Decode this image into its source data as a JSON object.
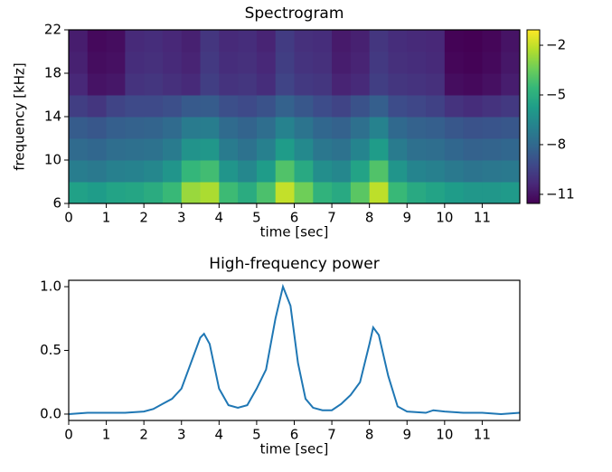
{
  "chart_data": [
    {
      "type": "heatmap",
      "title": "Spectrogram",
      "xlabel": "time [sec]",
      "ylabel": "frequency [kHz]",
      "colormap": "viridis",
      "x_bins": [
        0,
        0.5,
        1,
        1.5,
        2,
        2.5,
        3,
        3.5,
        4,
        4.5,
        5,
        5.5,
        6,
        6.5,
        7,
        7.5,
        8,
        8.5,
        9,
        9.5,
        10,
        10.5,
        11,
        11.5,
        12
      ],
      "y_bins": [
        6,
        8,
        10,
        12,
        14,
        16,
        18,
        20,
        22
      ],
      "z": [
        [
          -5.6,
          -5.8,
          -5.5,
          -5.4,
          -5.1,
          -4.5,
          -2.7,
          -2.4,
          -4.4,
          -5.1,
          -4.1,
          -2.0,
          -3.4,
          -4.8,
          -5.2,
          -3.8,
          -2.1,
          -4.5,
          -5.2,
          -5.5,
          -5.8,
          -6.0,
          -6.0,
          -5.9
        ],
        [
          -7.1,
          -7.3,
          -7.0,
          -6.9,
          -6.7,
          -6.1,
          -4.6,
          -4.3,
          -6.1,
          -6.7,
          -5.8,
          -4.0,
          -5.2,
          -6.4,
          -6.7,
          -5.5,
          -4.0,
          -6.1,
          -6.8,
          -7.0,
          -7.3,
          -7.5,
          -7.4,
          -7.3
        ],
        [
          -7.9,
          -8.1,
          -7.8,
          -7.7,
          -7.6,
          -7.2,
          -6.2,
          -6.0,
          -7.2,
          -7.6,
          -7.0,
          -5.8,
          -6.6,
          -7.4,
          -7.6,
          -6.8,
          -5.8,
          -7.2,
          -7.7,
          -7.8,
          -8.1,
          -8.3,
          -8.2,
          -8.1
        ],
        [
          -8.5,
          -8.7,
          -8.4,
          -8.3,
          -8.2,
          -7.9,
          -7.2,
          -7.1,
          -7.9,
          -8.2,
          -7.8,
          -6.9,
          -7.5,
          -8.1,
          -8.3,
          -7.7,
          -6.9,
          -8.0,
          -8.3,
          -8.4,
          -8.7,
          -8.9,
          -8.8,
          -8.7
        ],
        [
          -9.6,
          -9.9,
          -9.4,
          -9.2,
          -9.2,
          -9.0,
          -8.6,
          -8.5,
          -9.0,
          -9.2,
          -8.9,
          -8.3,
          -8.7,
          -9.1,
          -9.4,
          -8.9,
          -8.4,
          -9.1,
          -9.3,
          -9.5,
          -10.0,
          -10.2,
          -10.0,
          -9.8
        ],
        [
          -10.4,
          -11.0,
          -10.9,
          -10.0,
          -9.9,
          -10.1,
          -10.3,
          -9.6,
          -10.0,
          -9.9,
          -10.2,
          -9.4,
          -9.8,
          -9.9,
          -10.5,
          -10.3,
          -9.6,
          -9.9,
          -10.0,
          -10.1,
          -11.2,
          -11.3,
          -11.1,
          -10.7
        ],
        [
          -10.6,
          -11.2,
          -11.1,
          -10.2,
          -10.1,
          -10.3,
          -10.5,
          -9.8,
          -10.2,
          -10.1,
          -10.4,
          -9.6,
          -10.0,
          -10.1,
          -10.7,
          -10.5,
          -9.8,
          -10.1,
          -10.2,
          -10.3,
          -11.4,
          -11.5,
          -11.3,
          -10.9
        ],
        [
          -10.7,
          -11.3,
          -11.2,
          -10.3,
          -10.2,
          -10.4,
          -10.6,
          -9.9,
          -10.3,
          -10.2,
          -10.5,
          -9.7,
          -10.1,
          -10.2,
          -10.8,
          -10.6,
          -9.9,
          -10.2,
          -10.3,
          -10.4,
          -11.5,
          -11.6,
          -11.4,
          -11.0
        ]
      ],
      "xlim": [
        0,
        12
      ],
      "ylim": [
        6,
        22
      ],
      "xticks": [
        0,
        1,
        2,
        3,
        4,
        5,
        6,
        7,
        8,
        9,
        10,
        11
      ],
      "yticks": [
        6,
        10,
        14,
        18,
        22
      ],
      "clim": [
        -11.55,
        -1.07
      ],
      "cticks": [
        {
          "value": -2,
          "label": "−2"
        },
        {
          "value": -5,
          "label": "−5"
        },
        {
          "value": -8,
          "label": "−8"
        },
        {
          "value": -11,
          "label": "−11"
        }
      ]
    },
    {
      "type": "line",
      "title": "High-frequency power",
      "xlabel": "time [sec]",
      "color": "#1f77b4",
      "x": [
        0,
        0.5,
        1,
        1.5,
        2,
        2.25,
        2.5,
        2.75,
        3,
        3.25,
        3.5,
        3.6,
        3.75,
        4,
        4.25,
        4.5,
        4.75,
        5,
        5.25,
        5.5,
        5.7,
        5.9,
        6.1,
        6.3,
        6.5,
        6.75,
        7,
        7.25,
        7.5,
        7.75,
        8,
        8.1,
        8.25,
        8.5,
        8.75,
        9,
        9.5,
        9.7,
        10,
        10.5,
        11,
        11.5,
        12
      ],
      "values": [
        0.0,
        0.01,
        0.01,
        0.01,
        0.02,
        0.04,
        0.08,
        0.12,
        0.2,
        0.4,
        0.6,
        0.63,
        0.55,
        0.2,
        0.07,
        0.05,
        0.07,
        0.2,
        0.35,
        0.75,
        1.0,
        0.85,
        0.4,
        0.12,
        0.05,
        0.03,
        0.03,
        0.08,
        0.15,
        0.25,
        0.55,
        0.68,
        0.62,
        0.3,
        0.06,
        0.02,
        0.01,
        0.03,
        0.02,
        0.01,
        0.01,
        0.0,
        0.01
      ],
      "xlim": [
        0,
        12
      ],
      "ylim": [
        -0.05,
        1.05
      ],
      "xticks": [
        0,
        1,
        2,
        3,
        4,
        5,
        6,
        7,
        8,
        9,
        10,
        11
      ],
      "yticks": [
        {
          "value": 0,
          "label": "0.0"
        },
        {
          "value": 0.5,
          "label": "0.5"
        },
        {
          "value": 1,
          "label": "1.0"
        }
      ]
    }
  ]
}
